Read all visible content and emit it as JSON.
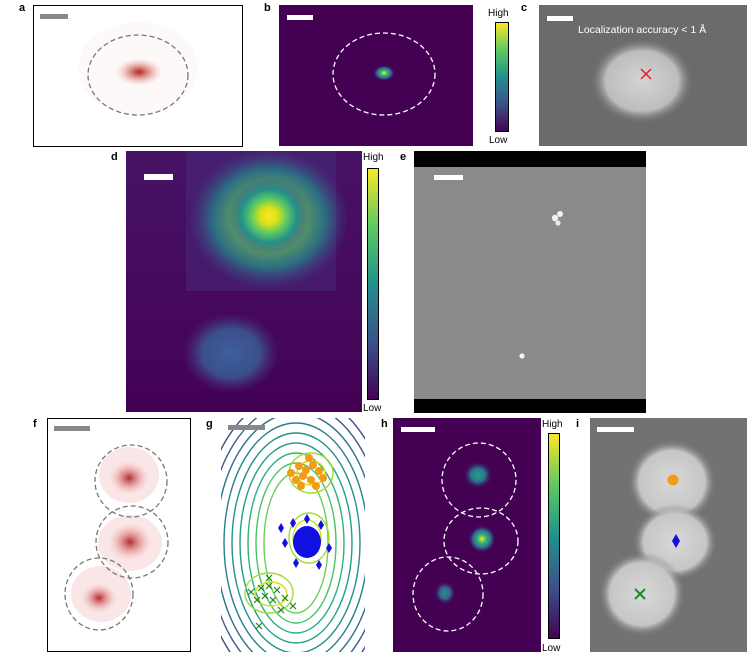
{
  "figure": {
    "panel_labels": {
      "a": "a",
      "b": "b",
      "c": "c",
      "d": "d",
      "e": "e",
      "f": "f",
      "g": "g",
      "h": "h",
      "i": "i"
    },
    "colorbar": {
      "high": "High",
      "low": "Low"
    },
    "panel_c_annotation": "Localization accuracy < 1 Å",
    "colors": {
      "heat_low": "#440154",
      "heat_mid": "#21918c",
      "heat_high": "#fde725",
      "loc_dots": "#c0392b",
      "marker_orange": "#f39c12",
      "marker_blue": "#1010e0",
      "marker_green": "#1b8a1b",
      "marker_red_x": "#e02020",
      "scale_bar_gray": "#888888",
      "scale_bar_white": "#ffffff"
    },
    "markers": {
      "top": "circle",
      "middle": "diamond",
      "bottom": "cross"
    }
  }
}
